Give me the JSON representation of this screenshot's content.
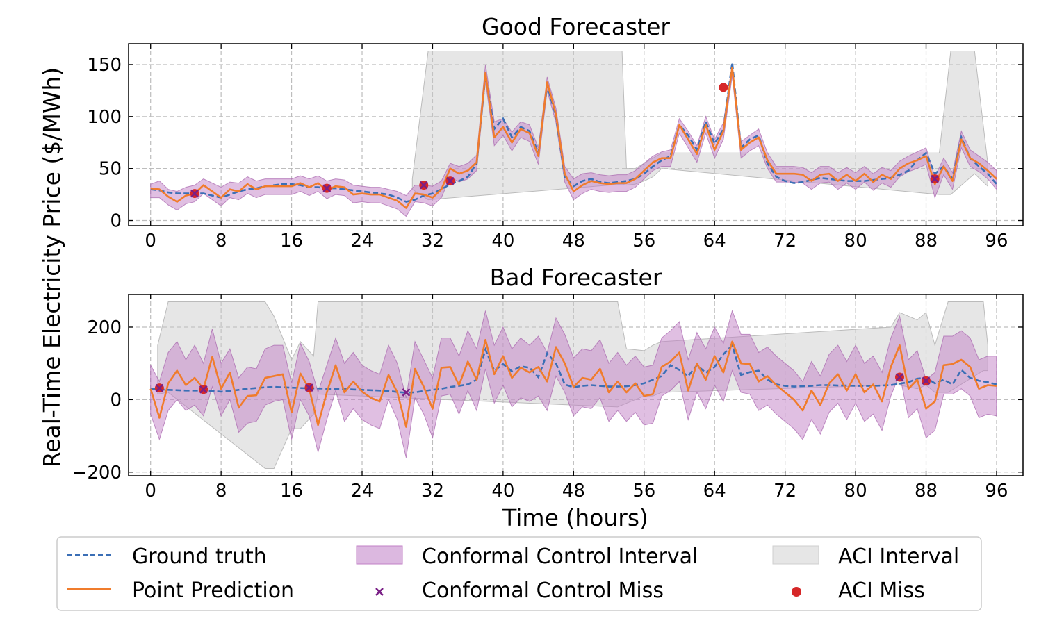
{
  "figure": {
    "ylabel": "Real-Time Electricity Price ($/MWh)",
    "xlabel": "Time (hours)"
  },
  "legend": {
    "placement": "bottom-center",
    "entries": [
      {
        "key": "ground_truth",
        "label": "Ground truth",
        "color": "#3b6fb6",
        "style": "dashed-line"
      },
      {
        "key": "point_prediction",
        "label": "Point Prediction",
        "color": "#f07c2c",
        "style": "line"
      },
      {
        "key": "cc_interval",
        "label": "Conformal Control Interval",
        "color": "#c17fc6",
        "style": "band"
      },
      {
        "key": "cc_miss",
        "label": "Conformal Control Miss",
        "color": "#7a1f86",
        "style": "x-marker"
      },
      {
        "key": "aci_interval",
        "label": "ACI Interval",
        "color": "#c8c8c8",
        "style": "band"
      },
      {
        "key": "aci_miss",
        "label": "ACI Miss",
        "color": "#d62728",
        "style": "dot-marker"
      }
    ]
  },
  "chart_data": [
    {
      "type": "line",
      "title": "Good Forecaster",
      "xlim": [
        -2.5,
        99
      ],
      "ylim": [
        -5,
        170
      ],
      "xticks": [
        0,
        8,
        16,
        24,
        32,
        40,
        48,
        56,
        64,
        72,
        80,
        88,
        96
      ],
      "yticks": [
        0,
        50,
        100,
        150
      ],
      "grid": true,
      "ground_truth": [
        30,
        29,
        27,
        26,
        26,
        26,
        26,
        24,
        22,
        25,
        28,
        30,
        31,
        33,
        34,
        35,
        35,
        34,
        32,
        32,
        31,
        31,
        30,
        29,
        28,
        27,
        26,
        25,
        22,
        18,
        20,
        24,
        26,
        30,
        35,
        38,
        42,
        55,
        140,
        88,
        98,
        80,
        90,
        86,
        65,
        130,
        100,
        42,
        33,
        38,
        40,
        37,
        36,
        37,
        38,
        40,
        45,
        52,
        58,
        62,
        92,
        82,
        68,
        95,
        74,
        88,
        152,
        70,
        78,
        82,
        55,
        42,
        38,
        36,
        37,
        39,
        41,
        40,
        39,
        38,
        38,
        38,
        39,
        40,
        41,
        44,
        48,
        58,
        65,
        45,
        52,
        40,
        80,
        60,
        52,
        45,
        35
      ],
      "prediction": [
        31,
        30,
        23,
        18,
        24,
        26,
        34,
        28,
        22,
        30,
        28,
        35,
        30,
        33,
        33,
        33,
        33,
        36,
        32,
        36,
        29,
        33,
        32,
        25,
        26,
        25,
        25,
        22,
        19,
        12,
        26,
        25,
        22,
        30,
        50,
        45,
        48,
        56,
        142,
        80,
        90,
        75,
        88,
        84,
        62,
        133,
        102,
        45,
        28,
        34,
        38,
        36,
        35,
        36,
        36,
        40,
        48,
        56,
        60,
        60,
        92,
        78,
        64,
        92,
        68,
        86,
        147,
        68,
        75,
        80,
        58,
        45,
        45,
        45,
        44,
        38,
        44,
        45,
        38,
        44,
        38,
        45,
        37,
        44,
        40,
        50,
        55,
        58,
        62,
        35,
        52,
        38,
        78,
        60,
        55,
        48,
        40
      ],
      "cc_upper": [
        35,
        38,
        30,
        28,
        32,
        34,
        40,
        36,
        32,
        37,
        36,
        42,
        38,
        40,
        40,
        40,
        40,
        43,
        40,
        43,
        38,
        40,
        39,
        34,
        33,
        32,
        32,
        30,
        28,
        24,
        34,
        34,
        33,
        38,
        55,
        52,
        55,
        63,
        150,
        95,
        98,
        85,
        95,
        92,
        70,
        138,
        108,
        52,
        40,
        45,
        46,
        44,
        43,
        44,
        44,
        48,
        55,
        62,
        66,
        68,
        98,
        86,
        72,
        100,
        78,
        94,
        150,
        76,
        82,
        88,
        65,
        52,
        52,
        52,
        51,
        46,
        52,
        52,
        46,
        51,
        46,
        52,
        45,
        51,
        48,
        57,
        62,
        66,
        70,
        42,
        60,
        46,
        86,
        68,
        62,
        56,
        48
      ],
      "cc_lower": [
        22,
        22,
        15,
        10,
        16,
        18,
        26,
        20,
        14,
        22,
        20,
        26,
        22,
        25,
        25,
        25,
        25,
        28,
        24,
        28,
        21,
        25,
        24,
        17,
        18,
        17,
        17,
        14,
        11,
        4,
        18,
        17,
        14,
        22,
        42,
        37,
        40,
        48,
        134,
        72,
        82,
        67,
        80,
        76,
        54,
        125,
        94,
        37,
        20,
        26,
        30,
        28,
        27,
        28,
        28,
        32,
        40,
        48,
        52,
        52,
        84,
        70,
        56,
        84,
        60,
        78,
        139,
        60,
        67,
        72,
        50,
        37,
        37,
        37,
        36,
        30,
        36,
        37,
        30,
        36,
        30,
        37,
        29,
        36,
        32,
        42,
        47,
        50,
        54,
        22,
        44,
        30,
        70,
        52,
        47,
        40,
        30
      ],
      "aci_interval": {
        "x": [
          29.7,
          31.5,
          53.5,
          54,
          55,
          56,
          57,
          58,
          89.5,
          90.8,
          93.5,
          95
        ],
        "upper": [
          40,
          163,
          163,
          50,
          50,
          55,
          60,
          65,
          65,
          163,
          163,
          55
        ],
        "lower": [
          30,
          20,
          35,
          34,
          35,
          38,
          42,
          50,
          25,
          25,
          45,
          33
        ]
      },
      "cc_misses": [
        [
          5,
          26
        ],
        [
          20,
          31
        ],
        [
          31,
          34
        ],
        [
          34,
          38
        ],
        [
          89,
          40
        ]
      ],
      "aci_misses": [
        [
          5,
          26
        ],
        [
          20,
          31
        ],
        [
          31,
          34
        ],
        [
          34,
          38
        ],
        [
          65,
          128
        ],
        [
          89,
          40
        ]
      ]
    },
    {
      "type": "line",
      "title": "Bad Forecaster",
      "xlim": [
        -2.5,
        99
      ],
      "ylim": [
        -210,
        290
      ],
      "xticks": [
        0,
        8,
        16,
        24,
        32,
        40,
        48,
        56,
        64,
        72,
        80,
        88,
        96
      ],
      "yticks": [
        -200,
        0,
        200
      ],
      "grid": true,
      "ground_truth": [
        30,
        28,
        27,
        26,
        25,
        25,
        25,
        24,
        22,
        24,
        27,
        30,
        32,
        34,
        35,
        34,
        33,
        32,
        31,
        31,
        30,
        30,
        29,
        28,
        27,
        26,
        25,
        24,
        21,
        19,
        20,
        24,
        27,
        30,
        35,
        38,
        42,
        55,
        138,
        80,
        98,
        78,
        92,
        88,
        62,
        128,
        100,
        42,
        34,
        38,
        40,
        38,
        36,
        36,
        37,
        40,
        45,
        55,
        65,
        95,
        82,
        65,
        95,
        74,
        90,
        125,
        150,
        68,
        76,
        80,
        55,
        42,
        38,
        36,
        37,
        38,
        40,
        40,
        39,
        39,
        38,
        38,
        38,
        39,
        40,
        44,
        48,
        58,
        60,
        45,
        55,
        42,
        82,
        60,
        52,
        48,
        42
      ],
      "prediction": [
        30,
        -50,
        45,
        80,
        40,
        60,
        30,
        118,
        30,
        75,
        -22,
        10,
        12,
        60,
        65,
        70,
        -35,
        72,
        30,
        -70,
        20,
        95,
        20,
        50,
        22,
        5,
        -5,
        68,
        20,
        -75,
        85,
        35,
        -25,
        88,
        90,
        40,
        105,
        55,
        165,
        70,
        120,
        60,
        88,
        75,
        90,
        50,
        145,
        100,
        35,
        60,
        55,
        85,
        20,
        50,
        20,
        45,
        10,
        15,
        90,
        105,
        130,
        25,
        100,
        55,
        120,
        75,
        160,
        100,
        98,
        50,
        65,
        40,
        20,
        0,
        -30,
        25,
        -15,
        45,
        70,
        25,
        70,
        20,
        42,
        -5,
        90,
        150,
        30,
        55,
        -25,
        -5,
        95,
        98,
        110,
        90,
        30,
        40,
        38
      ],
      "cc_upper": [
        95,
        50,
        130,
        160,
        110,
        150,
        100,
        195,
        100,
        140,
        60,
        90,
        85,
        140,
        150,
        150,
        45,
        155,
        105,
        20,
        95,
        170,
        100,
        130,
        95,
        80,
        70,
        150,
        100,
        5,
        160,
        110,
        60,
        170,
        170,
        120,
        190,
        140,
        245,
        150,
        200,
        140,
        170,
        150,
        175,
        130,
        225,
        180,
        115,
        140,
        135,
        165,
        100,
        130,
        95,
        120,
        90,
        95,
        170,
        190,
        215,
        110,
        185,
        140,
        200,
        155,
        245,
        180,
        180,
        130,
        145,
        120,
        100,
        80,
        50,
        105,
        65,
        125,
        150,
        105,
        150,
        100,
        120,
        75,
        170,
        230,
        110,
        135,
        55,
        75,
        175,
        175,
        190,
        170,
        110,
        120,
        120
      ],
      "cc_lower": [
        -40,
        -110,
        -30,
        0,
        -30,
        -15,
        -45,
        35,
        -45,
        0,
        -90,
        -65,
        -60,
        -15,
        -5,
        0,
        -110,
        0,
        -45,
        -145,
        -55,
        25,
        -60,
        -25,
        -55,
        -70,
        -80,
        0,
        -55,
        -160,
        5,
        -40,
        -105,
        10,
        15,
        -40,
        25,
        -30,
        85,
        -10,
        40,
        -20,
        5,
        -5,
        10,
        -30,
        65,
        20,
        -45,
        -20,
        -25,
        5,
        -60,
        -30,
        -60,
        -35,
        -70,
        -65,
        10,
        25,
        50,
        -55,
        20,
        -25,
        40,
        -5,
        80,
        20,
        15,
        -30,
        -15,
        -40,
        -60,
        -80,
        -110,
        -55,
        -95,
        -35,
        -10,
        -55,
        -10,
        -60,
        -40,
        -85,
        10,
        70,
        -50,
        -25,
        -105,
        -85,
        15,
        15,
        30,
        10,
        -50,
        -40,
        -45
      ],
      "aci_interval": {
        "x": [
          0.8,
          2,
          13,
          14,
          16,
          17,
          18.5,
          19,
          53,
          54,
          56,
          57,
          58,
          84,
          85,
          87,
          88,
          89,
          90.5,
          94.5,
          95
        ],
        "upper": [
          150,
          270,
          270,
          230,
          110,
          160,
          120,
          270,
          270,
          140,
          135,
          150,
          160,
          200,
          240,
          220,
          240,
          150,
          270,
          270,
          150
        ],
        "lower": [
          15,
          20,
          -190,
          -190,
          -80,
          -80,
          -40,
          15,
          -20,
          -10,
          10,
          10,
          20,
          40,
          40,
          30,
          40,
          20,
          20,
          80,
          80
        ]
      },
      "cc_misses": [
        [
          1,
          32
        ],
        [
          6,
          28
        ],
        [
          18,
          33
        ],
        [
          29,
          20
        ],
        [
          85,
          62
        ],
        [
          88,
          52
        ]
      ],
      "aci_misses": [
        [
          1,
          32
        ],
        [
          6,
          28
        ],
        [
          18,
          33
        ],
        [
          85,
          62
        ],
        [
          88,
          52
        ]
      ]
    }
  ]
}
